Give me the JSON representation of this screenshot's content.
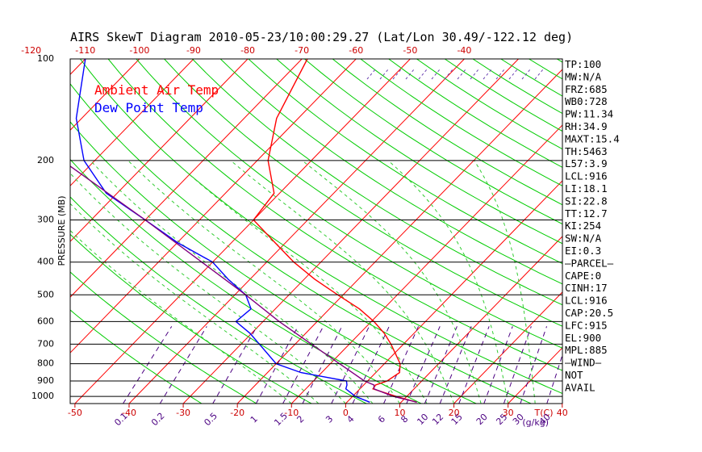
{
  "chart_data": {
    "type": "line",
    "title": "AIRS SkewT Diagram 2010-05-23/10:00:29.27 (Lat/Lon 30.49/-122.12 deg)",
    "ylabel": "PRESSURE (MB)",
    "xlabel_unit": "T(C)",
    "mixing_ratio_unit": "(g/kg)",
    "y_scale": "log",
    "ylim": [
      1050,
      100
    ],
    "pressure_ticks": [
      100,
      200,
      300,
      400,
      500,
      600,
      700,
      800,
      900,
      1000
    ],
    "bottom_temp_ticks": [
      -50,
      -40,
      -30,
      -20,
      -10,
      0,
      10,
      20,
      30,
      40
    ],
    "top_temp_ticks": [
      -120,
      -110,
      -100,
      -90,
      -80,
      -70,
      -60,
      -50,
      -40
    ],
    "mixing_ratio_ticks": [
      "0.1",
      "0.2",
      "0.5",
      "1",
      "1.5",
      "2",
      "3",
      "4",
      "6",
      "8",
      "10",
      "12",
      "15",
      "20",
      "25",
      "30",
      "40"
    ],
    "legend": [
      "Ambient Air Temp",
      "Dew Point Temp"
    ],
    "series": [
      {
        "name": "Ambient Air Temp",
        "color": "#ff0000",
        "points": [
          [
            1040,
            12.9
          ],
          [
            1000,
            8.0
          ],
          [
            950,
            2.4
          ],
          [
            925,
            2.2
          ],
          [
            900,
            3.6
          ],
          [
            850,
            4.4
          ],
          [
            800,
            2.9
          ],
          [
            700,
            -2.3
          ],
          [
            650,
            -5.5
          ],
          [
            600,
            -9.5
          ],
          [
            550,
            -14.5
          ],
          [
            500,
            -21.0
          ],
          [
            450,
            -28.0
          ],
          [
            400,
            -35.0
          ],
          [
            350,
            -42.0
          ],
          [
            300,
            -50.0
          ],
          [
            250,
            -51.0
          ],
          [
            200,
            -58.0
          ],
          [
            150,
            -64.0
          ],
          [
            100,
            -69.0
          ]
        ]
      },
      {
        "name": "Dew Point Temp",
        "color": "#0000ff",
        "points": [
          [
            1040,
            4.2
          ],
          [
            1000,
            0.5
          ],
          [
            950,
            -2.6
          ],
          [
            925,
            -3.1
          ],
          [
            900,
            -3.9
          ],
          [
            850,
            -13.8
          ],
          [
            800,
            -20.0
          ],
          [
            700,
            -26.6
          ],
          [
            650,
            -30.3
          ],
          [
            600,
            -35.0
          ],
          [
            550,
            -34.5
          ],
          [
            500,
            -38.0
          ],
          [
            450,
            -44.0
          ],
          [
            400,
            -50.0
          ],
          [
            350,
            -60.0
          ],
          [
            300,
            -70.0
          ],
          [
            250,
            -82.0
          ],
          [
            200,
            -92.0
          ],
          [
            150,
            -101.0
          ],
          [
            100,
            -110.0
          ]
        ]
      },
      {
        "name": "",
        "color": "#800080",
        "points": [
          [
            1040,
            12.9
          ],
          [
            1000,
            7.5
          ],
          [
            950,
            2.6
          ],
          [
            925,
            1.9
          ],
          [
            900,
            -0.6
          ],
          [
            800,
            -8.3
          ],
          [
            700,
            -17.0
          ],
          [
            600,
            -27.0
          ],
          [
            500,
            -38.0
          ],
          [
            400,
            -52.0
          ],
          [
            300,
            -70.0
          ],
          [
            200,
            -96.0
          ],
          [
            150,
            -113.0
          ],
          [
            100,
            -128.0
          ]
        ]
      }
    ],
    "indices": [
      "TP:100",
      "MW:N/A",
      "FRZ:685",
      "WB0:728",
      "PW:11.34",
      "RH:34.9",
      "MAXT:15.4",
      "TH:5463",
      "L57:3.9",
      "LCL:916",
      "LI:18.1",
      "SI:22.8",
      "TT:12.7",
      "KI:254",
      "SW:N/A",
      "EI:0.3",
      "—PARCEL—",
      "CAPE:0",
      "CINH:17",
      "LCL:916",
      "CAP:20.5",
      "LFC:915",
      "EL:900",
      "MPL:885",
      "—WIND—",
      "NOT",
      "AVAIL"
    ],
    "colors": {
      "isotherm": "#ff0000",
      "dry_adiabat": "#00cc00",
      "moist_adiabat": "#33cc33",
      "mixing_ratio": "#4b0082",
      "wind_barb": "#6a40b0",
      "legend_air": "#ff0000",
      "legend_dew": "#0000ff",
      "bottom_ticks": "#cc0000",
      "top_ticks": "#cc0000",
      "mixing_labels": "#4b0082"
    }
  }
}
